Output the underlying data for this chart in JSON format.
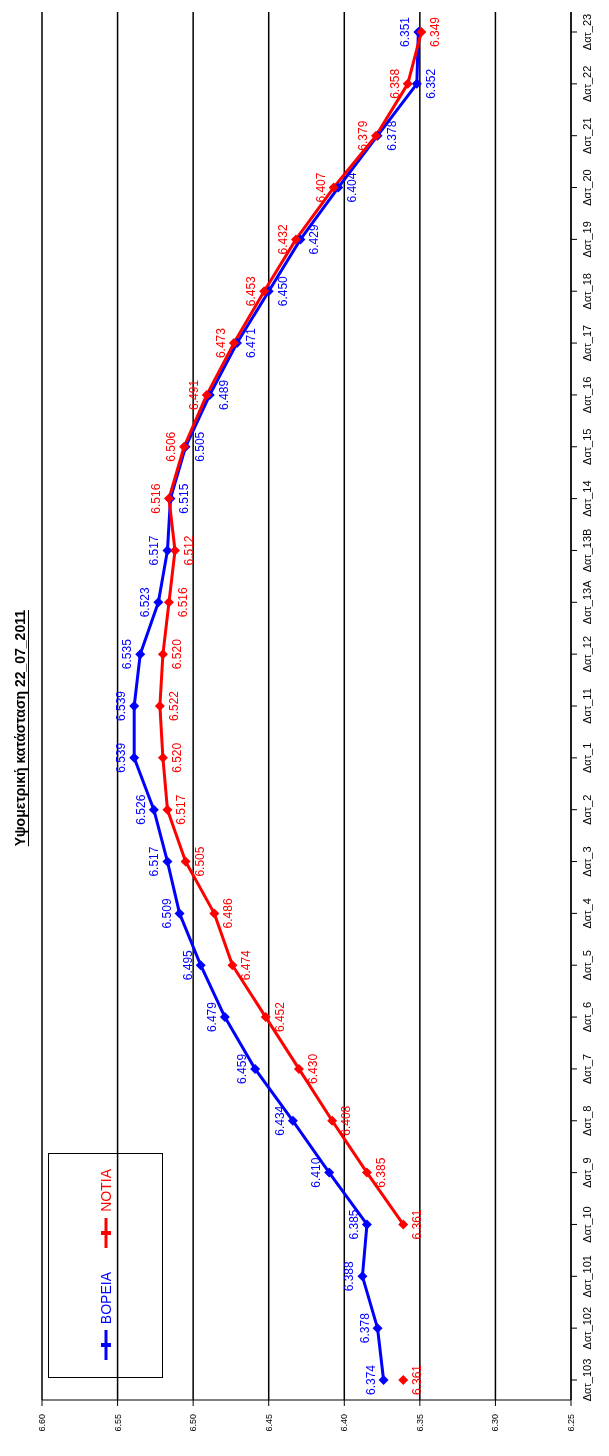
{
  "chart_data": {
    "type": "line",
    "title": "Υψομετρική κατάσταση 22_07_2011",
    "orientation": "horizontal",
    "categories": [
      "Δατ_23",
      "Δατ_22",
      "Δατ_21",
      "Δατ_20",
      "Δατ_19",
      "Δατ_18",
      "Δατ_17",
      "Δατ_16",
      "Δατ_15",
      "Δατ_14",
      "Δατ_13B",
      "Δατ_13A",
      "Δατ_12",
      "Δατ_11",
      "Δατ_1",
      "Δατ_2",
      "Δατ_3",
      "Δατ_4",
      "Δατ_5",
      "Δατ_6",
      "Δατ_7",
      "Δατ_8",
      "Δατ_9",
      "Δατ_10",
      "Δατ_101",
      "Δατ_102",
      "Δατ_103"
    ],
    "series": [
      {
        "name": "ΒΟΡΕΙΑ",
        "color": "#0000ff",
        "values": [
          6.351,
          6.352,
          6.378,
          6.404,
          6.429,
          6.45,
          6.471,
          6.489,
          6.505,
          6.515,
          6.517,
          6.523,
          6.535,
          6.539,
          6.539,
          6.526,
          6.517,
          6.509,
          6.495,
          6.479,
          6.459,
          6.434,
          6.41,
          6.385,
          6.388,
          6.378,
          6.374
        ],
        "value_labels": [
          "6.351",
          "6.352",
          "6.378",
          "6.404",
          "6.429",
          "6.450",
          "6.471",
          "6.489",
          "6.505",
          "6.515",
          "6.517",
          "6.523",
          "6.535",
          "6.539",
          "6.539",
          "6.526",
          "6.517",
          "6.509",
          "6.495",
          "6.479",
          "6.459",
          "6.434",
          "6.410",
          "6.385",
          "6.388",
          "6.378",
          "6.374"
        ]
      },
      {
        "name": "ΝΟΤΙΑ",
        "color": "#ff0000",
        "values": [
          6.349,
          6.358,
          6.379,
          6.407,
          6.432,
          6.453,
          6.473,
          6.491,
          6.506,
          6.516,
          6.512,
          6.516,
          6.52,
          6.522,
          6.52,
          6.517,
          6.505,
          6.486,
          6.474,
          6.452,
          6.43,
          6.408,
          6.385,
          6.361,
          null,
          null,
          6.361
        ],
        "value_labels": [
          "6.349",
          "6.358",
          "6.379",
          "6.407",
          "6.432",
          "6.453",
          "6.473",
          "6.491",
          "6.506",
          "6.516",
          "6.512",
          "6.516",
          "6.520",
          "6.522",
          "6.520",
          "6.517",
          "6.505",
          "6.486",
          "6.474",
          "6.452",
          "6.430",
          "6.408",
          "6.385",
          "6.361",
          null,
          null,
          "6.361"
        ]
      }
    ],
    "xlim": [
      6.6,
      6.25
    ],
    "xticks": [
      {
        "value": 6.6,
        "label": "6.60"
      },
      {
        "value": 6.55,
        "label": "6.55"
      },
      {
        "value": 6.5,
        "label": "6.50"
      },
      {
        "value": 6.45,
        "label": "6.45"
      },
      {
        "value": 6.4,
        "label": "6.40"
      },
      {
        "value": 6.35,
        "label": "6.35"
      },
      {
        "value": 6.3,
        "label": "6.30"
      },
      {
        "value": 6.25,
        "label": "6.25"
      }
    ],
    "grid": "x",
    "legend": "bottom left",
    "marker": "diamond",
    "line_style": "solid"
  }
}
